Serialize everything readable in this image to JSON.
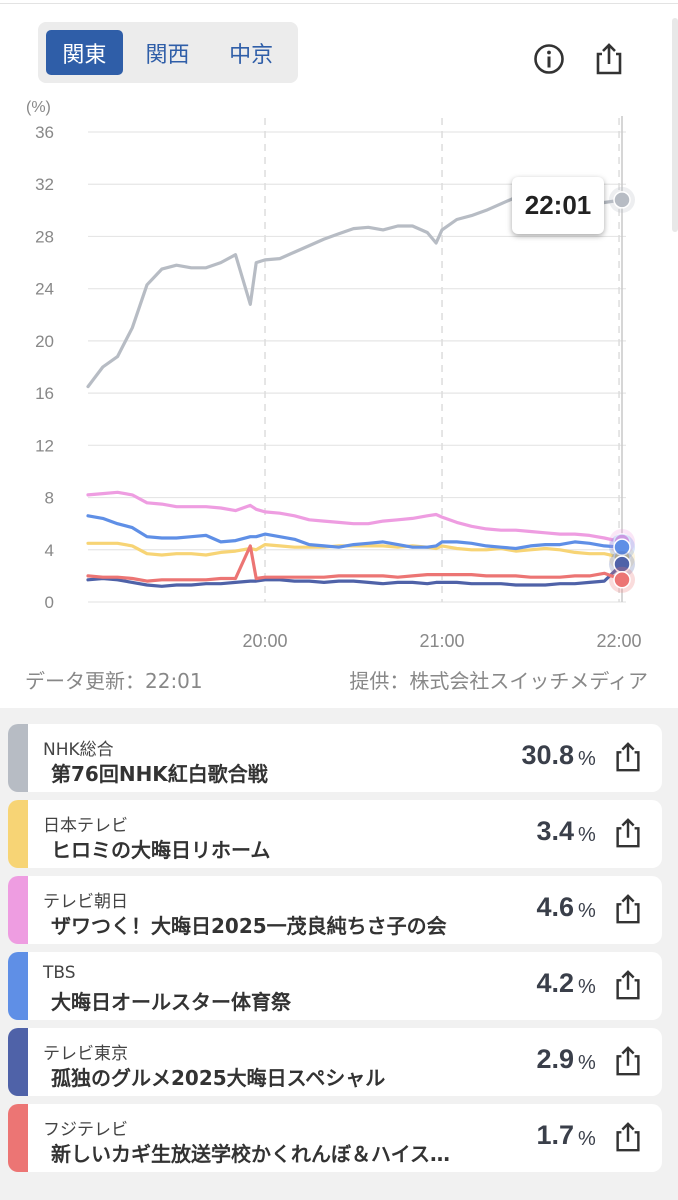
{
  "region_tabs": [
    {
      "label": "関東",
      "selected": true
    },
    {
      "label": "関西",
      "selected": false
    },
    {
      "label": "中京",
      "selected": false
    }
  ],
  "icons": {
    "info": "info-icon",
    "share": "share-icon"
  },
  "tooltip_time": "22:01",
  "update_text": "データ更新：22:01",
  "provider_text": "提供：株式会社スイッチメディア",
  "colors": {
    "NHK総合": "#b7bcc4",
    "日本テレビ": "#f7d475",
    "テレビ朝日": "#ee9de1",
    "TBS": "#5f8fe6",
    "テレビ東京": "#4f62a8",
    "フジテレビ": "#ec7574",
    "accent": "#2f5ea8"
  },
  "stations": [
    {
      "station": "NHK総合",
      "program": "第76回NHK紅白歌合戦",
      "value": "30.8",
      "unit": "%"
    },
    {
      "station": "日本テレビ",
      "program": "ヒロミの大晦日リホーム",
      "value": "3.4",
      "unit": "%"
    },
    {
      "station": "テレビ朝日",
      "program": "ザワつく！大晦日2025一茂良純ちさ子の会",
      "value": "4.6",
      "unit": "%"
    },
    {
      "station": "TBS",
      "program": "大晦日オールスター体育祭",
      "value": "4.2",
      "unit": "%"
    },
    {
      "station": "テレビ東京",
      "program": "孤独のグルメ2025大晦日スペシャル",
      "value": "2.9",
      "unit": "%"
    },
    {
      "station": "フジテレビ",
      "program": "新しいカギ生放送学校かくれんぼ＆ハイス…",
      "value": "1.7",
      "unit": "%"
    }
  ],
  "chart_data": {
    "type": "line",
    "xlabel": "",
    "ylabel": "(%)",
    "ylim": [
      0,
      36
    ],
    "yticks": [
      "0",
      "4",
      "8",
      "12",
      "16",
      "20",
      "24",
      "28",
      "32",
      "36"
    ],
    "xticks": [
      "20:00",
      "21:00",
      "22:00"
    ],
    "x": [
      "19:00",
      "19:05",
      "19:10",
      "19:15",
      "19:20",
      "19:25",
      "19:30",
      "19:35",
      "19:40",
      "19:45",
      "19:50",
      "19:55",
      "19:57",
      "20:00",
      "20:05",
      "20:10",
      "20:15",
      "20:20",
      "20:25",
      "20:30",
      "20:35",
      "20:40",
      "20:45",
      "20:50",
      "20:55",
      "20:58",
      "21:00",
      "21:05",
      "21:10",
      "21:15",
      "21:20",
      "21:25",
      "21:30",
      "21:35",
      "21:40",
      "21:45",
      "21:50",
      "21:55",
      "22:01"
    ],
    "grid": true,
    "legend": "none",
    "series": [
      {
        "name": "NHK総合",
        "color": "#b7bcc4",
        "values": [
          16.5,
          18,
          18.8,
          21,
          24.3,
          25.5,
          25.8,
          25.6,
          25.6,
          26,
          26.6,
          22.8,
          26,
          26.2,
          26.3,
          26.8,
          27.3,
          27.8,
          28.2,
          28.6,
          28.7,
          28.5,
          28.8,
          28.8,
          28.3,
          27.5,
          28.5,
          29.3,
          29.6,
          30,
          30.5,
          31,
          30.5,
          30.4,
          30.7,
          30.9,
          30.8,
          30.6,
          30.8
        ]
      },
      {
        "name": "日本テレビ",
        "color": "#f7d475",
        "values": [
          4.5,
          4.5,
          4.5,
          4.3,
          3.7,
          3.6,
          3.7,
          3.7,
          3.6,
          3.8,
          3.9,
          4.1,
          4.0,
          4.4,
          4.3,
          4.2,
          4.2,
          4.2,
          4.3,
          4.3,
          4.3,
          4.3,
          4.2,
          4.3,
          4.2,
          4.1,
          4.3,
          4.1,
          4.0,
          4.0,
          4.1,
          3.9,
          4.0,
          4.1,
          4.0,
          3.8,
          3.7,
          3.7,
          3.4
        ]
      },
      {
        "name": "テレビ朝日",
        "color": "#ee9de1",
        "values": [
          8.2,
          8.3,
          8.4,
          8.2,
          7.6,
          7.5,
          7.3,
          7.3,
          7.3,
          7.2,
          7.0,
          7.4,
          7.1,
          6.9,
          6.8,
          6.6,
          6.3,
          6.2,
          6.1,
          6.0,
          6.0,
          6.2,
          6.3,
          6.4,
          6.6,
          6.7,
          6.5,
          6.1,
          5.8,
          5.6,
          5.5,
          5.5,
          5.4,
          5.3,
          5.2,
          5.2,
          5.1,
          4.9,
          4.6
        ]
      },
      {
        "name": "TBS",
        "color": "#5f8fe6",
        "values": [
          6.6,
          6.4,
          6.0,
          5.7,
          5.0,
          4.9,
          4.9,
          5.0,
          5.1,
          4.6,
          4.7,
          5.0,
          5.0,
          5.2,
          5.0,
          4.8,
          4.4,
          4.3,
          4.2,
          4.4,
          4.5,
          4.6,
          4.4,
          4.2,
          4.2,
          4.3,
          4.6,
          4.6,
          4.5,
          4.3,
          4.2,
          4.1,
          4.3,
          4.4,
          4.4,
          4.6,
          4.5,
          4.3,
          4.2
        ]
      },
      {
        "name": "テレビ東京",
        "color": "#4f62a8",
        "values": [
          1.7,
          1.8,
          1.7,
          1.5,
          1.3,
          1.2,
          1.3,
          1.3,
          1.4,
          1.4,
          1.5,
          1.6,
          1.6,
          1.7,
          1.7,
          1.6,
          1.6,
          1.5,
          1.6,
          1.6,
          1.5,
          1.4,
          1.5,
          1.5,
          1.4,
          1.5,
          1.5,
          1.5,
          1.4,
          1.4,
          1.4,
          1.3,
          1.3,
          1.3,
          1.4,
          1.4,
          1.5,
          1.6,
          2.9
        ]
      },
      {
        "name": "フジテレビ",
        "color": "#ec7574",
        "values": [
          2.0,
          1.9,
          1.9,
          1.8,
          1.6,
          1.7,
          1.7,
          1.7,
          1.7,
          1.8,
          1.8,
          4.3,
          1.8,
          1.9,
          1.9,
          1.9,
          1.9,
          1.9,
          2.0,
          2.0,
          2.0,
          2.0,
          1.9,
          2.0,
          2.1,
          2.1,
          2.1,
          2.1,
          2.1,
          2.0,
          2.0,
          2.0,
          1.9,
          1.9,
          1.9,
          2.0,
          2.0,
          2.2,
          1.7
        ]
      }
    ]
  }
}
